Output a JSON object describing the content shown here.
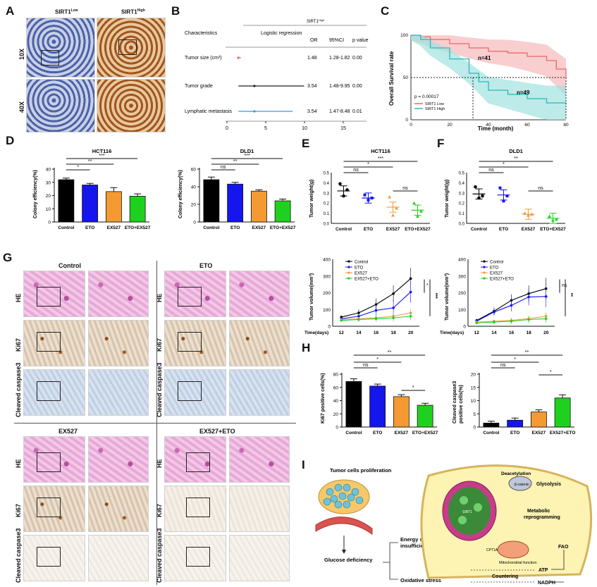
{
  "panels": {
    "A": "A",
    "B": "B",
    "C": "C",
    "D": "D",
    "E": "E",
    "F": "F",
    "G": "G",
    "H": "H",
    "I": "I"
  },
  "panelA": {
    "col_low": "SIRT1",
    "col_low_sup": "Low",
    "col_high": "SIRT1",
    "col_high_sup": "High",
    "row1": "10X",
    "row2": "40X"
  },
  "panelB": {
    "header_top": "SIRT1",
    "header_top_sup": "High",
    "col_char": "Characteristics",
    "col_lr": "Logistic regression",
    "col_or": "OR",
    "col_ci": "95%CI",
    "col_p": "p value",
    "rows": [
      {
        "label": "Tumor size (cm³)",
        "or": "1.48",
        "ci": "1.28-1.82",
        "p": "0.00"
      },
      {
        "label": "Tumor grade",
        "or": "3.54",
        "ci": "1.48-9.95",
        "p": "0.00"
      },
      {
        "label": "Lymphatic metastasis",
        "or": "3.54",
        "ci": "1.47-8.48",
        "p": "0.01"
      }
    ],
    "ticks": [
      "0",
      "5",
      "10",
      "15"
    ]
  },
  "panelC": {
    "ylabel": "Overall Survival rate",
    "xlabel": "Time (month)",
    "yticks": [
      "0",
      "50",
      "100"
    ],
    "xticks": [
      "0",
      "20",
      "40",
      "60",
      "80"
    ],
    "n_low": "n=41",
    "n_high": "n=49",
    "pvalue": "p = 0.00017",
    "legend_low": "SIRT1 Low",
    "legend_high": "SIRT1 High",
    "color_low": "#e7696d",
    "color_high": "#2ab8b8"
  },
  "panelD": {
    "left_title": "HCT116",
    "right_title": "DLD1",
    "ylabel": "Colony efficiency(%)",
    "categories": [
      "Control",
      "ETO",
      "EX527",
      "ETO+EX527"
    ],
    "left_yticks": [
      "0",
      "10",
      "20",
      "30",
      "40"
    ],
    "right_yticks": [
      "0",
      "20",
      "40",
      "60"
    ],
    "left_sig": [
      "*",
      "**",
      "***"
    ],
    "right_sig": [
      "ns",
      "**",
      "***"
    ]
  },
  "panelE": {
    "title": "HCT116",
    "ylabel": "Tumor weight(g)",
    "yticks": [
      "0.0",
      "0.1",
      "0.2",
      "0.3",
      "0.4",
      "0.5"
    ],
    "categories": [
      "Control",
      "ETO",
      "EX527",
      "ETO+EX527"
    ],
    "sig": [
      "ns",
      "*",
      "***",
      "ns"
    ],
    "vol_ylabel": "Tumor volume(mm³)",
    "vol_yticks": [
      "0",
      "100",
      "200",
      "300",
      "400"
    ],
    "vol_xlabel": "Time(days)",
    "vol_xticks": [
      "12",
      "14",
      "16",
      "18",
      "20"
    ],
    "legend": [
      "Control",
      "ETO",
      "EX527",
      "EX527+ETO"
    ],
    "vol_sig": [
      "*",
      "***"
    ]
  },
  "panelF": {
    "title": "DLD1",
    "ylabel": "Tumor weight(g)",
    "yticks": [
      "0.0",
      "0.1",
      "0.2",
      "0.3",
      "0.4",
      "0.5"
    ],
    "categories": [
      "Control",
      "ETO",
      "EX527",
      "ETO+EX527"
    ],
    "sig": [
      "ns",
      "*",
      "**",
      "ns"
    ],
    "vol_ylabel": "Tumor volume(mm³)",
    "vol_yticks": [
      "0",
      "100",
      "200",
      "300",
      "400"
    ],
    "vol_xlabel": "Time(days)",
    "vol_xticks": [
      "12",
      "14",
      "16",
      "18",
      "20"
    ],
    "legend": [
      "Control",
      "ETO",
      "EX527",
      "EX527+ETO"
    ],
    "vol_sig": [
      "ns",
      "**"
    ]
  },
  "panelG": {
    "groups": [
      "Control",
      "ETO",
      "EX527",
      "EX527+ETO"
    ],
    "rows": [
      "HE",
      "Ki67",
      "Cleaved caspase3"
    ]
  },
  "panelH": {
    "left_ylabel": "Ki67 positive cells(%)",
    "right_ylabel1": "Cleaved caspase3",
    "right_ylabel2": "positive cells(%)",
    "left_cats": [
      "Control",
      "ETO",
      "EX527",
      "ETO+EX527"
    ],
    "right_cats": [
      "Control",
      "ETO",
      "EX527",
      "EX527+ETO"
    ],
    "left_yticks": [
      "0",
      "20",
      "40",
      "60",
      "80"
    ],
    "right_yticks": [
      "0",
      "5",
      "10",
      "15",
      "20"
    ],
    "left_sig": [
      "ns",
      "*",
      "**",
      "*"
    ],
    "right_sig": [
      "ns",
      "*",
      "**",
      "*"
    ]
  },
  "panelI": {
    "tumor_label": "Tumor cells proliferation",
    "glucose": "Glucose deficiency",
    "energy1": "Energy source",
    "energy2": "insufficient",
    "oxstress": "Oxidative stress",
    "countering": "Countering",
    "atp": "ATP",
    "nadph": "NADPH",
    "deacetylation": "Deacetylation",
    "glycolysis": "Glycolysis",
    "metabolic1": "Metabolic",
    "metabolic2": "reprogramming",
    "fao": "FAO",
    "cpt1a": "CPT1A",
    "mito": "Mitochondrial function",
    "bcatenin": "β-catenin",
    "sirt1": "SIRT1"
  },
  "chart_data": [
    {
      "type": "forest",
      "title": "",
      "categories": [
        "Tumor size (cm³)",
        "Tumor grade",
        "Lymphatic metastasis"
      ],
      "values": [
        1.48,
        3.54,
        3.54
      ],
      "ci": [
        [
          1.28,
          1.82
        ],
        [
          1.48,
          9.95
        ],
        [
          1.47,
          8.48
        ]
      ],
      "xlim": [
        0,
        15
      ]
    },
    {
      "type": "line",
      "title": "",
      "xlabel": "Time (month)",
      "ylabel": "Overall Survival rate",
      "xlim": [
        0,
        80
      ],
      "ylim": [
        0,
        100
      ],
      "series": [
        {
          "name": "SIRT1 Low",
          "x": [
            0,
            5,
            10,
            20,
            30,
            40,
            50,
            60,
            70,
            75,
            80
          ],
          "values": [
            100,
            98,
            95,
            90,
            85,
            81,
            79,
            75,
            70,
            60,
            50
          ]
        },
        {
          "name": "SIRT1 High",
          "x": [
            0,
            5,
            10,
            20,
            30,
            35,
            40,
            50,
            60,
            70,
            80
          ],
          "values": [
            100,
            95,
            85,
            72,
            55,
            45,
            35,
            30,
            25,
            20,
            18
          ]
        }
      ]
    },
    {
      "type": "bar",
      "title": "HCT116",
      "ylabel": "Colony efficiency(%)",
      "categories": [
        "Control",
        "ETO",
        "EX527",
        "ETO+EX527"
      ],
      "values": [
        32,
        28,
        23,
        19.5
      ],
      "errors": [
        1.2,
        1.2,
        3,
        1.8
      ],
      "ylim": [
        0,
        40
      ]
    },
    {
      "type": "bar",
      "title": "DLD1",
      "ylabel": "Colony efficiency(%)",
      "categories": [
        "Control",
        "ETO",
        "EX527",
        "ETO+EX527"
      ],
      "values": [
        48,
        43,
        35,
        24
      ],
      "errors": [
        3,
        2,
        1.5,
        2
      ],
      "ylim": [
        0,
        60
      ]
    },
    {
      "type": "scatter",
      "title": "HCT116",
      "ylabel": "Tumor weight(g)",
      "categories": [
        "Control",
        "ETO",
        "EX527",
        "ETO+EX527"
      ],
      "points": [
        [
          0.39,
          0.33,
          0.27
        ],
        [
          0.28,
          0.25,
          0.23
        ],
        [
          0.26,
          0.15,
          0.08
        ],
        [
          0.2,
          0.12,
          0.07
        ]
      ],
      "means": [
        0.32,
        0.25,
        0.16,
        0.13
      ],
      "ylim": [
        0,
        0.5
      ]
    },
    {
      "type": "scatter",
      "title": "DLD1",
      "ylabel": "Tumor weight(g)",
      "categories": [
        "Control",
        "ETO",
        "EX527",
        "ETO+EX527"
      ],
      "points": [
        [
          0.36,
          0.27,
          0.25
        ],
        [
          0.35,
          0.27,
          0.22
        ],
        [
          0.1,
          0.09,
          0.08
        ],
        [
          0.07,
          0.04,
          0.03
        ]
      ],
      "means": [
        0.29,
        0.28,
        0.09,
        0.05
      ],
      "ylim": [
        0,
        0.5
      ]
    },
    {
      "type": "line",
      "title": "",
      "xlabel": "Time(days)",
      "ylabel": "Tumor volume(mm³)",
      "x": [
        12,
        14,
        16,
        18,
        20
      ],
      "ylim": [
        0,
        400
      ],
      "series": [
        {
          "name": "Control",
          "values": [
            55,
            80,
            130,
            195,
            285
          ]
        },
        {
          "name": "ETO",
          "values": [
            45,
            60,
            95,
            110,
            205
          ]
        },
        {
          "name": "EX527",
          "values": [
            40,
            45,
            50,
            60,
            80
          ]
        },
        {
          "name": "EX527+ETO",
          "values": [
            35,
            40,
            45,
            50,
            60
          ]
        }
      ]
    },
    {
      "type": "line",
      "title": "",
      "xlabel": "Time(days)",
      "ylabel": "Tumor volume(mm³)",
      "x": [
        12,
        14,
        16,
        18,
        20
      ],
      "ylim": [
        0,
        400
      ],
      "series": [
        {
          "name": "Control",
          "values": [
            35,
            90,
            155,
            195,
            225
          ]
        },
        {
          "name": "ETO",
          "values": [
            30,
            85,
            125,
            175,
            178
          ]
        },
        {
          "name": "EX527",
          "values": [
            25,
            30,
            35,
            45,
            60
          ]
        },
        {
          "name": "EX527+ETO",
          "values": [
            20,
            25,
            30,
            40,
            45
          ]
        }
      ]
    },
    {
      "type": "bar",
      "title": "",
      "ylabel": "Ki67 positive cells(%)",
      "categories": [
        "Control",
        "ETO",
        "EX527",
        "ETO+EX527"
      ],
      "values": [
        69,
        62,
        46,
        33
      ],
      "errors": [
        4,
        3,
        3,
        3
      ],
      "ylim": [
        0,
        80
      ]
    },
    {
      "type": "bar",
      "title": "",
      "ylabel": "Cleaved caspase3 positive cells(%)",
      "categories": [
        "Control",
        "ETO",
        "EX527",
        "EX527+ETO"
      ],
      "values": [
        1.5,
        2.6,
        5.7,
        11
      ],
      "errors": [
        0.7,
        0.8,
        0.8,
        1.2
      ],
      "ylim": [
        0,
        20
      ]
    }
  ],
  "colors": {
    "black": "#000000",
    "blue": "#1515ee",
    "orange": "#f59a32",
    "green": "#1fd11f",
    "ci_line": "#2d9ee6",
    "pink_band": "#f7b9b9",
    "cyan_band": "#9fe3df"
  }
}
